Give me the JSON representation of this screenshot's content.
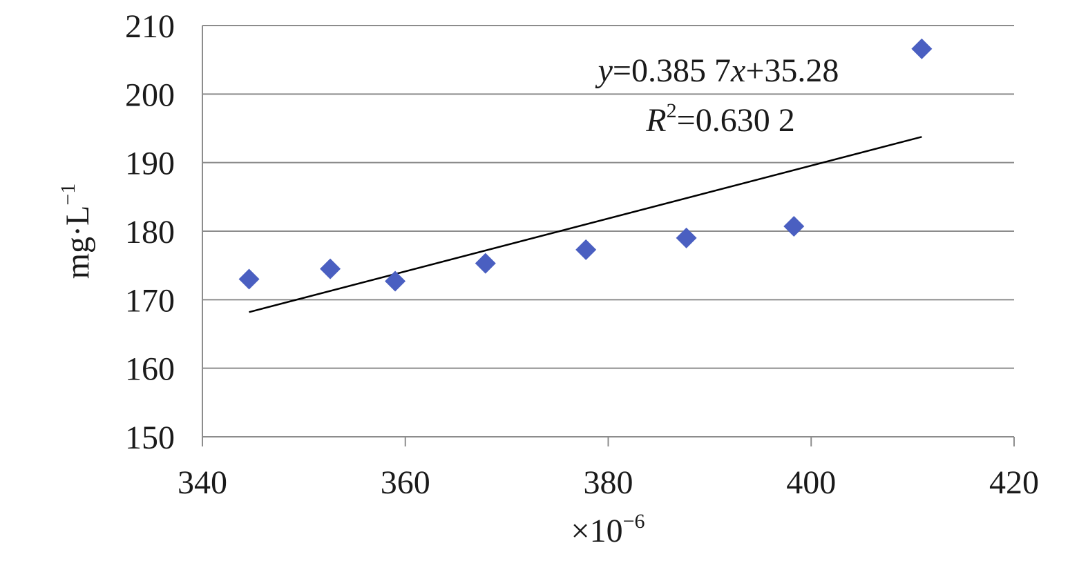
{
  "chart_data": {
    "type": "scatter",
    "title": "",
    "xlabel": "×10",
    "xlabel_exp": "−6",
    "ylabel": "mg·L",
    "ylabel_exp": "−1",
    "xlim": [
      340,
      420
    ],
    "ylim": [
      150,
      210
    ],
    "xticks": [
      340,
      360,
      380,
      400,
      420
    ],
    "yticks": [
      150,
      160,
      170,
      180,
      190,
      200,
      210
    ],
    "grid": "horizontal",
    "legend": "none",
    "series": [
      {
        "marker": "diamond",
        "color": "#4a5fc1",
        "x": [
          344.6,
          352.6,
          359.0,
          367.9,
          377.8,
          387.7,
          398.3,
          410.9
        ],
        "y": [
          173.0,
          174.5,
          172.7,
          175.3,
          177.3,
          179.0,
          180.7,
          206.6
        ]
      }
    ],
    "trendline": {
      "slope": 0.3857,
      "intercept": 35.28,
      "x_range": [
        344.6,
        410.9
      ],
      "color": "#000000",
      "equation": {
        "y_var": "y",
        "eq1": "=0.385 7",
        "x_var": "x",
        "eq2": "+35.28",
        "r_var": "R",
        "r_exp": "2",
        "r_val": "=0.630 2"
      }
    }
  }
}
